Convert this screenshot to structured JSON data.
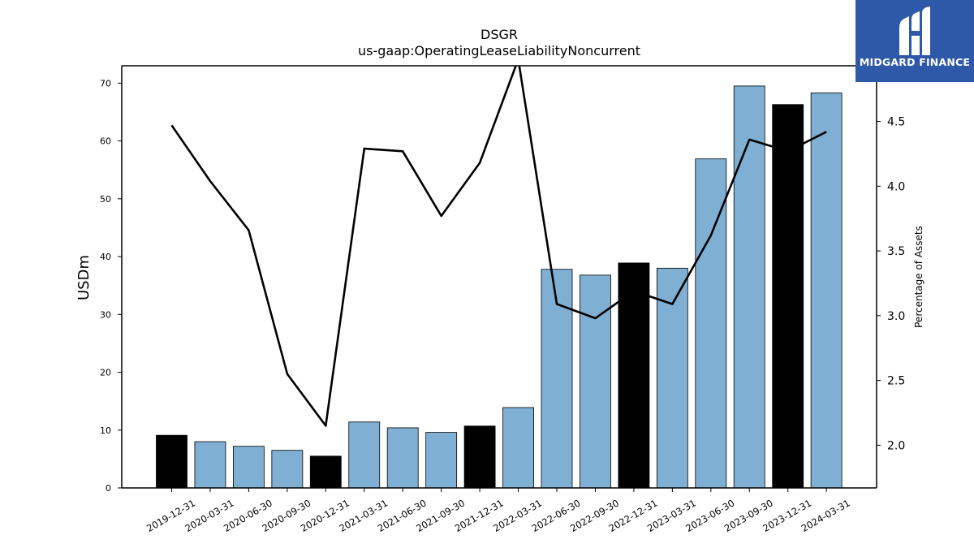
{
  "brand": {
    "name": "MIDGARD FINANCE",
    "background_color": "#2e58a8",
    "icon": "midgard-finance-logo-icon"
  },
  "chart_data": {
    "type": "bar",
    "title": "DSGR",
    "subtitle": "us-gaap:OperatingLeaseLiabilityNoncurrent",
    "ylabel": "USDm",
    "y2label": "Percentage of Assets",
    "ylim": [
      0,
      73
    ],
    "y2lim": [
      1.67,
      4.93
    ],
    "yticks": [
      0,
      10,
      20,
      30,
      40,
      50,
      60,
      70
    ],
    "y2ticks": [
      "2.0",
      "2.5",
      "3.0",
      "3.5",
      "4.0",
      "4.5"
    ],
    "categories": [
      "2019-12-31",
      "2020-03-31",
      "2020-06-30",
      "2020-09-30",
      "2020-12-31",
      "2021-03-31",
      "2021-06-30",
      "2021-09-30",
      "2021-12-31",
      "2022-03-31",
      "2022-06-30",
      "2022-09-30",
      "2022-12-31",
      "2023-03-31",
      "2023-06-30",
      "2023-09-30",
      "2023-12-31",
      "2024-03-31"
    ],
    "series": [
      {
        "type": "bar",
        "axis": "left",
        "values": [
          9.1,
          8.0,
          7.2,
          6.5,
          5.5,
          11.4,
          10.4,
          9.6,
          10.7,
          13.9,
          37.8,
          36.8,
          38.9,
          38.0,
          56.9,
          69.5,
          66.3,
          68.3
        ],
        "colors": [
          "#000000",
          "#7fb0d4",
          "#7fb0d4",
          "#7fb0d4",
          "#000000",
          "#7fb0d4",
          "#7fb0d4",
          "#7fb0d4",
          "#000000",
          "#7fb0d4",
          "#7fb0d4",
          "#7fb0d4",
          "#000000",
          "#7fb0d4",
          "#7fb0d4",
          "#7fb0d4",
          "#000000",
          "#7fb0d4"
        ]
      },
      {
        "type": "line",
        "axis": "right",
        "color": "#000000",
        "values": [
          4.47,
          4.04,
          3.66,
          2.55,
          2.15,
          4.29,
          4.27,
          3.77,
          4.18,
          4.98,
          3.09,
          2.98,
          3.19,
          3.09,
          3.62,
          4.36,
          4.27,
          4.42
        ]
      }
    ],
    "grid": false,
    "legend": "none"
  }
}
